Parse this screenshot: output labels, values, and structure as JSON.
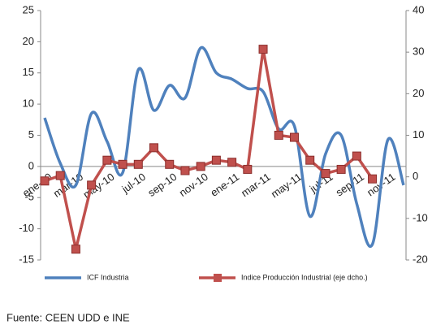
{
  "chart_data": {
    "type": "line",
    "categories": [
      "ene-10",
      null,
      "mar-10",
      null,
      "may-10",
      null,
      "jul-10",
      null,
      "sep-10",
      null,
      "nov-10",
      null,
      "ene-11",
      null,
      "mar-11",
      null,
      "may-11",
      null,
      "jul-11",
      null,
      "sep-11",
      null,
      "nov-11",
      null
    ],
    "series": [
      {
        "name": "ICF Industria",
        "color": "#4f81bd",
        "smooth": true,
        "values": [
          7.8,
          0.5,
          -3,
          8.5,
          4,
          -1,
          15.5,
          9,
          13,
          11,
          19,
          15,
          14,
          12.5,
          12,
          6,
          6.5,
          -8,
          2,
          5,
          -6,
          -12.5,
          4.3,
          -3
        ]
      },
      {
        "name": "Indice Producción Industrial (eje dcho.)",
        "color": "#c0504d",
        "axis": "y2",
        "marker": "square",
        "values": [
          -1,
          0.3,
          -17.4,
          -2,
          4,
          3,
          3,
          7,
          3,
          1.5,
          2.5,
          4,
          3.5,
          1.8,
          30.7,
          10,
          9.5,
          4,
          0.8,
          1.8,
          5,
          -0.5,
          null,
          null
        ]
      }
    ],
    "ylim": [
      -15,
      25
    ],
    "yticks": [
      -15,
      -10,
      -5,
      0,
      5,
      10,
      15,
      20,
      25
    ],
    "y2lim": [
      -20,
      40
    ],
    "y2ticks": [
      -20,
      -10,
      0,
      10,
      20,
      30,
      40
    ],
    "grid": false,
    "legend": "bottom",
    "source": "Fuente: CEEN UDD e INE"
  }
}
